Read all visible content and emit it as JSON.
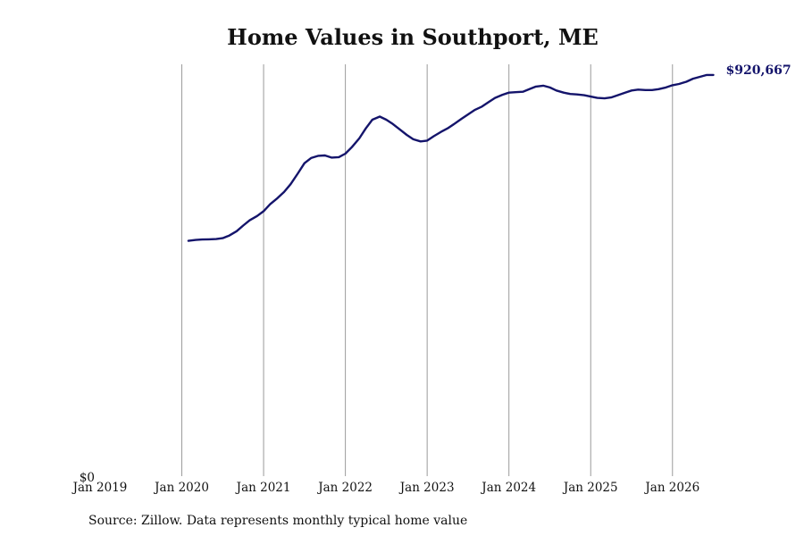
{
  "chart_data": {
    "type": "line",
    "title": "Home Values in Southport, ME",
    "source": "Source: Zillow. Data represents monthly typical home value",
    "xlabel": "",
    "ylabel": "",
    "y_tick_label": "$0",
    "x_tick_labels": [
      "Jan 2019",
      "Jan 2020",
      "Jan 2021",
      "Jan 2022",
      "Jan 2023",
      "Jan 2024",
      "Jan 2025",
      "Jan 2026"
    ],
    "x_tick_values": [
      2019,
      2020,
      2021,
      2022,
      2023,
      2024,
      2025,
      2026
    ],
    "xlim": [
      2019,
      2026.8
    ],
    "ylim": [
      0,
      945000
    ],
    "grid": "vertical",
    "end_label": "$920,667",
    "line_color": "#14146b",
    "series": [
      {
        "x": [
          2020.08,
          2020.17,
          2020.25,
          2020.33,
          2020.42,
          2020.5,
          2020.58,
          2020.67,
          2020.75,
          2020.83,
          2020.92,
          2021.0,
          2021.08,
          2021.17,
          2021.25,
          2021.33,
          2021.42,
          2021.5,
          2021.58,
          2021.67,
          2021.75,
          2021.83,
          2021.92,
          2022.0,
          2022.08,
          2022.17,
          2022.25,
          2022.33,
          2022.42,
          2022.5,
          2022.58,
          2022.67,
          2022.75,
          2022.83,
          2022.92,
          2023.0,
          2023.08,
          2023.17,
          2023.25,
          2023.33,
          2023.42,
          2023.5,
          2023.58,
          2023.67,
          2023.75,
          2023.83,
          2023.92,
          2024.0,
          2024.08,
          2024.17,
          2024.25,
          2024.33,
          2024.42,
          2024.5,
          2024.58,
          2024.67,
          2024.75,
          2024.83,
          2024.92,
          2025.0,
          2025.08,
          2025.17,
          2025.25,
          2025.33,
          2025.42,
          2025.5,
          2025.58,
          2025.67,
          2025.75,
          2025.83,
          2025.92,
          2026.0,
          2026.08,
          2026.17,
          2026.25,
          2026.33,
          2026.42,
          2026.5
        ],
        "values": [
          540000,
          542000,
          543000,
          543500,
          544000,
          546000,
          552000,
          562000,
          575000,
          587000,
          597000,
          608000,
          624000,
          638000,
          652000,
          670000,
          695000,
          718000,
          730000,
          735000,
          736000,
          731000,
          732000,
          740000,
          755000,
          775000,
          798000,
          818000,
          825000,
          818000,
          808000,
          795000,
          783000,
          773000,
          768000,
          770000,
          780000,
          790000,
          798000,
          808000,
          820000,
          830000,
          840000,
          848000,
          858000,
          868000,
          875000,
          880000,
          881000,
          882000,
          888000,
          894000,
          896000,
          892000,
          885000,
          880000,
          877000,
          876000,
          874000,
          871000,
          868000,
          867000,
          869000,
          874000,
          880000,
          885000,
          887000,
          886000,
          886000,
          888000,
          892000,
          897000,
          900000,
          905000,
          912000,
          916000,
          920667,
          920667
        ]
      }
    ]
  }
}
